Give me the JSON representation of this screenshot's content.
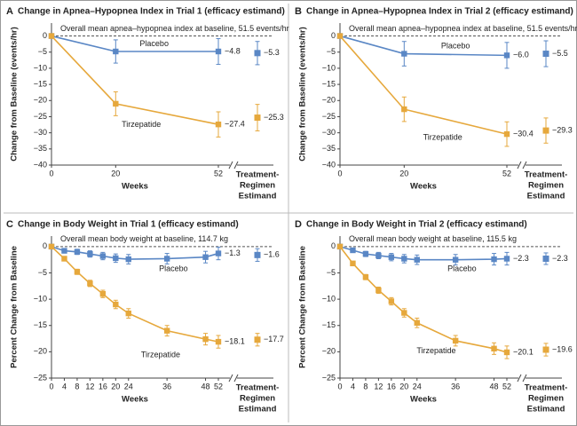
{
  "chart_data": [
    {
      "type": "line",
      "panel": "A",
      "title": "Change in Apnea–Hypopnea Index in Trial 1 (efficacy estimand)",
      "subtitle": "Overall mean apnea–hypopnea index at baseline, 51.5 events/hr",
      "xlabel": "Weeks",
      "ylabel": "Change from Baseline (events/hr)",
      "estimand_label": [
        "Treatment-",
        "Regimen",
        "Estimand"
      ],
      "x": [
        0,
        20,
        52
      ],
      "xlim": [
        0,
        52
      ],
      "xticks": [
        0,
        20,
        52
      ],
      "ylim": [
        -40,
        4
      ],
      "yticks": [
        {
          "value": -40,
          "label": "−40"
        },
        {
          "value": -35,
          "label": "−35"
        },
        {
          "value": -30,
          "label": "−30"
        },
        {
          "value": -25,
          "label": "−25"
        },
        {
          "value": -20,
          "label": "−20"
        },
        {
          "value": -15,
          "label": "−15"
        },
        {
          "value": -10,
          "label": "−10"
        },
        {
          "value": -5,
          "label": "−5"
        },
        0
      ],
      "series": [
        {
          "name": "Placebo",
          "color": "#5a87c5",
          "values": [
            0,
            -4.8,
            -4.8
          ],
          "errors": [
            null,
            3.6,
            4.0
          ],
          "value_labels": [
            null,
            null,
            "−4.8"
          ],
          "estimand": -5.3,
          "estimand_error": 3.6,
          "estimand_label": "−5.3"
        },
        {
          "name": "Tirzepatide",
          "color": "#e6a83c",
          "values": [
            0,
            -21.0,
            -27.4
          ],
          "errors": [
            null,
            3.7,
            3.9
          ],
          "value_labels": [
            null,
            null,
            "−27.4"
          ],
          "estimand": -25.3,
          "estimand_error": 4.1,
          "estimand_label": "−25.3"
        }
      ]
    },
    {
      "type": "line",
      "panel": "B",
      "title": "Change in Apnea–Hypopnea Index in Trial 2 (efficacy estimand)",
      "subtitle": "Overall mean apnea–hypopnea index at baseline, 51.5 events/hr",
      "xlabel": "Weeks",
      "ylabel": "Change from Baseline (events/hr)",
      "estimand_label": [
        "Treatment-",
        "Regimen",
        "Estimand"
      ],
      "x": [
        0,
        20,
        52
      ],
      "xlim": [
        0,
        52
      ],
      "xticks": [
        0,
        20,
        52
      ],
      "ylim": [
        -40,
        4
      ],
      "yticks": [
        {
          "value": -40,
          "label": "−40"
        },
        {
          "value": -35,
          "label": "−35"
        },
        {
          "value": -30,
          "label": "−30"
        },
        {
          "value": -25,
          "label": "−25"
        },
        {
          "value": -20,
          "label": "−20"
        },
        {
          "value": -15,
          "label": "−15"
        },
        {
          "value": -10,
          "label": "−10"
        },
        {
          "value": -5,
          "label": "−5"
        },
        0
      ],
      "series": [
        {
          "name": "Placebo",
          "color": "#5a87c5",
          "values": [
            0,
            -5.5,
            -6.0
          ],
          "errors": [
            null,
            3.8,
            4.0
          ],
          "value_labels": [
            null,
            null,
            "−6.0"
          ],
          "estimand": -5.5,
          "estimand_error": 4.0,
          "estimand_label": "−5.5"
        },
        {
          "name": "Tirzepatide",
          "color": "#e6a83c",
          "values": [
            0,
            -22.7,
            -30.4
          ],
          "errors": [
            null,
            3.8,
            3.8
          ],
          "value_labels": [
            null,
            null,
            "−30.4"
          ],
          "estimand": -29.3,
          "estimand_error": 3.9,
          "estimand_label": "−29.3"
        }
      ]
    },
    {
      "type": "line",
      "panel": "C",
      "title": "Change in Body Weight in Trial 1 (efficacy estimand)",
      "subtitle": "Overall mean body weight at baseline, 114.7 kg",
      "xlabel": "Weeks",
      "ylabel": "Percent Change from Baseline",
      "estimand_label": [
        "Treatment-",
        "Regimen",
        "Estimand"
      ],
      "x": [
        0,
        4,
        8,
        12,
        16,
        20,
        24,
        36,
        48,
        52
      ],
      "xlim": [
        0,
        52
      ],
      "xticks": [
        0,
        4,
        8,
        12,
        16,
        20,
        24,
        36,
        48,
        52
      ],
      "ylim": [
        -25,
        2
      ],
      "yticks": [
        {
          "value": -25,
          "label": "−25"
        },
        {
          "value": -20,
          "label": "−20"
        },
        {
          "value": -15,
          "label": "−15"
        },
        {
          "value": -10,
          "label": "−10"
        },
        {
          "value": -5,
          "label": "−5"
        },
        0
      ],
      "series": [
        {
          "name": "Placebo",
          "color": "#5a87c5",
          "values": [
            0,
            -0.8,
            -1.0,
            -1.4,
            -1.8,
            -2.2,
            -2.4,
            -2.3,
            -2.0,
            -1.3
          ],
          "errors": [
            null,
            0.4,
            0.5,
            0.6,
            0.7,
            0.8,
            0.9,
            1.0,
            1.1,
            1.2
          ],
          "value_labels": [
            null,
            null,
            null,
            null,
            null,
            null,
            null,
            null,
            null,
            "−1.3"
          ],
          "estimand": -1.6,
          "estimand_error": 1.2,
          "estimand_label": "−1.6"
        },
        {
          "name": "Tirzepatide",
          "color": "#e6a83c",
          "values": [
            0,
            -2.3,
            -4.8,
            -7.0,
            -9.0,
            -11.0,
            -12.7,
            -16.0,
            -17.6,
            -18.1
          ],
          "errors": [
            null,
            0.4,
            0.5,
            0.6,
            0.7,
            0.8,
            0.9,
            1.0,
            1.1,
            1.2
          ],
          "value_labels": [
            null,
            null,
            null,
            null,
            null,
            null,
            null,
            null,
            null,
            "−18.1"
          ],
          "estimand": -17.7,
          "estimand_error": 1.2,
          "estimand_label": "−17.7"
        }
      ]
    },
    {
      "type": "line",
      "panel": "D",
      "title": "Change in Body Weight in Trial 2 (efficacy estimand)",
      "subtitle": "Overall mean body weight at baseline, 115.5 kg",
      "xlabel": "Weeks",
      "ylabel": "Percent Change from Baseline",
      "estimand_label": [
        "Treatment-",
        "Regimen",
        "Estimand"
      ],
      "x": [
        0,
        4,
        8,
        12,
        16,
        20,
        24,
        36,
        48,
        52
      ],
      "xlim": [
        0,
        52
      ],
      "xticks": [
        0,
        4,
        8,
        12,
        16,
        20,
        24,
        36,
        48,
        52
      ],
      "ylim": [
        -25,
        2
      ],
      "yticks": [
        {
          "value": -25,
          "label": "−25"
        },
        {
          "value": -20,
          "label": "−20"
        },
        {
          "value": -15,
          "label": "−15"
        },
        {
          "value": -10,
          "label": "−10"
        },
        {
          "value": -5,
          "label": "−5"
        },
        0
      ],
      "series": [
        {
          "name": "Placebo",
          "color": "#5a87c5",
          "values": [
            0,
            -0.7,
            -1.4,
            -1.7,
            -2.0,
            -2.3,
            -2.5,
            -2.5,
            -2.4,
            -2.3
          ],
          "errors": [
            null,
            0.4,
            0.5,
            0.6,
            0.7,
            0.8,
            0.9,
            1.0,
            1.1,
            1.2
          ],
          "value_labels": [
            null,
            null,
            null,
            null,
            null,
            null,
            null,
            null,
            null,
            "−2.3"
          ],
          "estimand": -2.3,
          "estimand_error": 1.1,
          "estimand_label": "−2.3"
        },
        {
          "name": "Tirzepatide",
          "color": "#e6a83c",
          "values": [
            0,
            -3.2,
            -5.8,
            -8.3,
            -10.4,
            -12.6,
            -14.5,
            -17.9,
            -19.4,
            -20.1
          ],
          "errors": [
            null,
            0.4,
            0.5,
            0.6,
            0.7,
            0.8,
            0.9,
            1.0,
            1.1,
            1.2
          ],
          "value_labels": [
            null,
            null,
            null,
            null,
            null,
            null,
            null,
            null,
            null,
            "−20.1"
          ],
          "estimand": -19.6,
          "estimand_error": 1.2,
          "estimand_label": "−19.6"
        }
      ]
    }
  ]
}
